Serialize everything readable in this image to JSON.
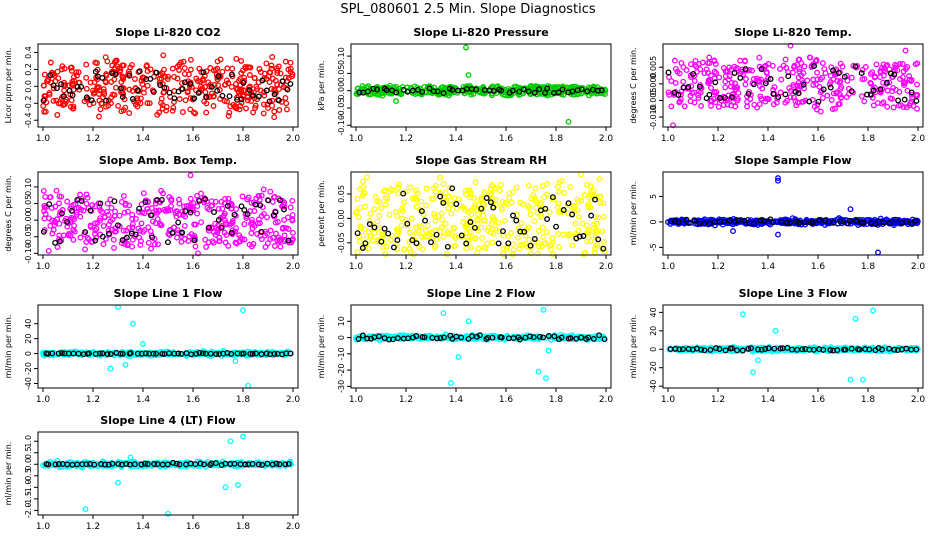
{
  "figure": {
    "title": "SPL_080601  2.5 Min. Slope Diagnostics"
  },
  "colors": {
    "axis": "#000000",
    "red": "#ff0000",
    "green": "#00cc00",
    "magenta": "#ff00ff",
    "yellow": "#ffff00",
    "blue": "#0000ff",
    "cyan": "#00ffff",
    "overlay": "#000000"
  },
  "chart_data": [
    {
      "type": "scatter",
      "title": "Slope Li-820 CO2",
      "ylabel": "Licor ppm per min.",
      "xlim": [
        1.0,
        2.0
      ],
      "ylim": [
        -0.48,
        0.5
      ],
      "xticks": [
        "1.0",
        "1.2",
        "1.4",
        "1.6",
        "1.8",
        "2.0"
      ],
      "yticks": [
        {
          "v": 0.4,
          "label": "0.4"
        },
        {
          "v": 0.2,
          "label": "0.2"
        },
        {
          "v": 0.0,
          "label": "0.0"
        },
        {
          "v": -0.2,
          "label": "-0.2"
        },
        {
          "v": -0.4,
          "label": "-0.4"
        }
      ],
      "color_key": "red",
      "n": 420,
      "center": 0.0,
      "spread": 0.2,
      "shape": "uniform",
      "overlay_n": 60,
      "overlay_spread": 0.1,
      "outliers": []
    },
    {
      "type": "scatter",
      "title": "Slope Li-820 Pressure",
      "ylabel": "kPa per min.",
      "xlim": [
        1.0,
        2.0
      ],
      "ylim": [
        -0.105,
        0.135
      ],
      "xticks": [
        "1.0",
        "1.2",
        "1.4",
        "1.6",
        "1.8",
        "2.0"
      ],
      "yticks": [
        {
          "v": 0.1,
          "label": "0.10"
        },
        {
          "v": 0.05,
          "label": "0.05"
        },
        {
          "v": 0.0,
          "label": "0.00"
        },
        {
          "v": -0.05,
          "label": "-0.05"
        },
        {
          "v": -0.1,
          "label": "-0.10"
        }
      ],
      "color_key": "green",
      "n": 400,
      "center": 0.0,
      "spread": 0.008,
      "shape": "uniform",
      "overlay_n": 50,
      "overlay_spread": 0.004,
      "outliers": [
        {
          "x": 1.44,
          "y": 0.125
        },
        {
          "x": 1.85,
          "y": -0.09
        },
        {
          "x": 1.16,
          "y": -0.03
        },
        {
          "x": 1.45,
          "y": 0.045
        }
      ]
    },
    {
      "type": "scatter",
      "title": "Slope Li-820 Temp.",
      "ylabel": "degrees C per min.",
      "xlim": [
        1.0,
        2.0
      ],
      "ylim": [
        -0.013,
        0.012
      ],
      "xticks": [
        "1.0",
        "1.2",
        "1.4",
        "1.6",
        "1.8",
        "2.0"
      ],
      "yticks": [
        {
          "v": 0.005,
          "label": "0.005"
        },
        {
          "v": 0.0,
          "label": "0.000"
        },
        {
          "v": -0.005,
          "label": "-0.005"
        },
        {
          "v": -0.01,
          "label": "-0.010"
        }
      ],
      "color_key": "magenta",
      "n": 380,
      "center": 0.0,
      "spread": 0.0045,
      "shape": "uniform",
      "overlay_n": 50,
      "overlay_spread": 0.003,
      "outliers": [
        {
          "x": 1.02,
          "y": -0.0125
        },
        {
          "x": 1.95,
          "y": 0.01
        },
        {
          "x": 1.49,
          "y": 0.0115
        }
      ]
    },
    {
      "type": "scatter",
      "title": "Slope Amb. Box Temp.",
      "ylabel": "degrees C per min.",
      "xlim": [
        1.0,
        2.0
      ],
      "ylim": [
        -0.105,
        0.145
      ],
      "xticks": [
        "1.0",
        "1.2",
        "1.4",
        "1.6",
        "1.8",
        "2.0"
      ],
      "yticks": [
        {
          "v": 0.1,
          "label": "0.10"
        },
        {
          "v": 0.05,
          "label": "0.05"
        },
        {
          "v": 0.0,
          "label": "0.00"
        },
        {
          "v": -0.05,
          "label": "-0.05"
        },
        {
          "v": -0.1,
          "label": "-0.10"
        }
      ],
      "color_key": "magenta",
      "n": 420,
      "center": 0.0,
      "spread": 0.05,
      "shape": "uniform",
      "overlay_n": 55,
      "overlay_spread": 0.04,
      "outliers": [
        {
          "x": 1.59,
          "y": 0.135
        },
        {
          "x": 1.62,
          "y": -0.1
        }
      ]
    },
    {
      "type": "scatter",
      "title": "Slope Gas Stream RH",
      "ylabel": "percent per min.",
      "xlim": [
        1.0,
        2.0
      ],
      "ylim": [
        -0.075,
        0.095
      ],
      "xticks": [
        "1.0",
        "1.2",
        "1.4",
        "1.6",
        "1.8",
        "2.0"
      ],
      "yticks": [
        {
          "v": 0.05,
          "label": "0.05"
        },
        {
          "v": 0.0,
          "label": "0.00"
        },
        {
          "v": -0.05,
          "label": "-0.05"
        }
      ],
      "color_key": "yellow",
      "n": 420,
      "center": 0.0,
      "spread": 0.045,
      "shape": "uniform",
      "overlay_n": 55,
      "overlay_spread": 0.035,
      "outliers": [
        {
          "x": 1.7,
          "y": -0.072
        },
        {
          "x": 1.9,
          "y": 0.09
        }
      ]
    },
    {
      "type": "scatter",
      "title": "Slope Sample Flow",
      "ylabel": "ml/min per min.",
      "xlim": [
        1.0,
        2.0
      ],
      "ylim": [
        -6.5,
        9.8
      ],
      "xticks": [
        "1.0",
        "1.2",
        "1.4",
        "1.6",
        "1.8",
        "2.0"
      ],
      "yticks": [
        {
          "v": 5,
          "label": "5"
        },
        {
          "v": 0,
          "label": "0"
        },
        {
          "v": -5,
          "label": "-5"
        }
      ],
      "color_key": "blue",
      "n": 400,
      "center": 0.0,
      "spread": 0.5,
      "shape": "band",
      "overlay_n": 50,
      "overlay_spread": 0.6,
      "outliers": [
        {
          "x": 1.44,
          "y": 8.6
        },
        {
          "x": 1.44,
          "y": 8.1
        },
        {
          "x": 1.84,
          "y": -6.0
        },
        {
          "x": 1.73,
          "y": 2.5
        },
        {
          "x": 1.26,
          "y": -1.8
        },
        {
          "x": 1.44,
          "y": -2.5
        }
      ]
    },
    {
      "type": "scatter",
      "title": "Slope Line 1 Flow",
      "ylabel": "ml/min per min.",
      "xlim": [
        1.0,
        2.0
      ],
      "ylim": [
        -46,
        65
      ],
      "xticks": [
        "1.0",
        "1.2",
        "1.4",
        "1.6",
        "1.8",
        "2.0"
      ],
      "yticks": [
        {
          "v": 40,
          "label": "40"
        },
        {
          "v": 20,
          "label": "20"
        },
        {
          "v": 0,
          "label": "0"
        },
        {
          "v": -20,
          "label": "-20"
        },
        {
          "v": -40,
          "label": "-40"
        }
      ],
      "color_key": "cyan",
      "n": 400,
      "center": 0.0,
      "spread": 2.5,
      "shape": "band",
      "overlay_n": 60,
      "overlay_spread": 1.0,
      "outliers": [
        {
          "x": 1.3,
          "y": 62
        },
        {
          "x": 1.36,
          "y": 40
        },
        {
          "x": 1.27,
          "y": -20
        },
        {
          "x": 1.33,
          "y": -15
        },
        {
          "x": 1.8,
          "y": 58
        },
        {
          "x": 1.82,
          "y": -43
        },
        {
          "x": 1.77,
          "y": -10
        },
        {
          "x": 1.4,
          "y": 13
        }
      ]
    },
    {
      "type": "scatter",
      "title": "Slope Line 2 Flow",
      "ylabel": "ml/min per min.",
      "xlim": [
        1.0,
        2.0
      ],
      "ylim": [
        -31,
        20
      ],
      "xticks": [
        "1.0",
        "1.2",
        "1.4",
        "1.6",
        "1.8",
        "2.0"
      ],
      "yticks": [
        {
          "v": 10,
          "label": "10"
        },
        {
          "v": 0,
          "label": "0"
        },
        {
          "v": -10,
          "label": "-10"
        },
        {
          "v": -20,
          "label": "-20"
        },
        {
          "v": -30,
          "label": "-30"
        }
      ],
      "color_key": "cyan",
      "n": 400,
      "center": 0.0,
      "spread": 1.2,
      "shape": "band",
      "overlay_n": 55,
      "overlay_spread": 1.5,
      "outliers": [
        {
          "x": 1.38,
          "y": -28
        },
        {
          "x": 1.35,
          "y": 15
        },
        {
          "x": 1.41,
          "y": -12
        },
        {
          "x": 1.45,
          "y": 10
        },
        {
          "x": 1.75,
          "y": 17
        },
        {
          "x": 1.73,
          "y": -21
        },
        {
          "x": 1.76,
          "y": -25
        },
        {
          "x": 1.77,
          "y": -8
        }
      ]
    },
    {
      "type": "scatter",
      "title": "Slope Line 3 Flow",
      "ylabel": "ml/min per min.",
      "xlim": [
        1.0,
        2.0
      ],
      "ylim": [
        -42,
        48
      ],
      "xticks": [
        "1.0",
        "1.2",
        "1.4",
        "1.6",
        "1.8",
        "2.0"
      ],
      "yticks": [
        {
          "v": 40,
          "label": "40"
        },
        {
          "v": 20,
          "label": "20"
        },
        {
          "v": 0,
          "label": "0"
        },
        {
          "v": -20,
          "label": "-20"
        },
        {
          "v": -40,
          "label": "-40"
        }
      ],
      "color_key": "cyan",
      "n": 400,
      "center": 0.0,
      "spread": 2.0,
      "shape": "band",
      "overlay_n": 55,
      "overlay_spread": 1.5,
      "outliers": [
        {
          "x": 1.3,
          "y": 38
        },
        {
          "x": 1.34,
          "y": -25
        },
        {
          "x": 1.36,
          "y": -12
        },
        {
          "x": 1.43,
          "y": 20
        },
        {
          "x": 1.75,
          "y": 33
        },
        {
          "x": 1.73,
          "y": -33
        },
        {
          "x": 1.78,
          "y": -33
        },
        {
          "x": 1.82,
          "y": 42
        }
      ]
    },
    {
      "type": "scatter",
      "title": "Slope Line 4 (LT) Flow",
      "ylabel": "ml/min per min.",
      "xlim": [
        1.0,
        2.0
      ],
      "ylim": [
        -2.2,
        1.4
      ],
      "xticks": [
        "1.0",
        "1.2",
        "1.4",
        "1.6",
        "1.8",
        "2.0"
      ],
      "yticks": [
        {
          "v": 1.0,
          "label": "1.0"
        },
        {
          "v": 0.5,
          "label": "0.5"
        },
        {
          "v": 0.0,
          "label": "0.0"
        },
        {
          "v": -0.5,
          "label": "-0.5"
        },
        {
          "v": -1.0,
          "label": "-1.0"
        },
        {
          "v": -1.5,
          "label": "-1.5"
        },
        {
          "v": -2.0,
          "label": "-2.0"
        }
      ],
      "color_key": "cyan",
      "n": 400,
      "center": 0.0,
      "spread": 0.1,
      "shape": "band",
      "overlay_n": 55,
      "overlay_spread": 0.05,
      "outliers": [
        {
          "x": 1.17,
          "y": -1.95
        },
        {
          "x": 1.5,
          "y": -2.15
        },
        {
          "x": 1.3,
          "y": -0.8
        },
        {
          "x": 1.35,
          "y": 0.3
        },
        {
          "x": 1.8,
          "y": 1.2
        },
        {
          "x": 1.75,
          "y": 1.0
        },
        {
          "x": 1.73,
          "y": -1.0
        },
        {
          "x": 1.78,
          "y": -0.9
        }
      ]
    }
  ]
}
